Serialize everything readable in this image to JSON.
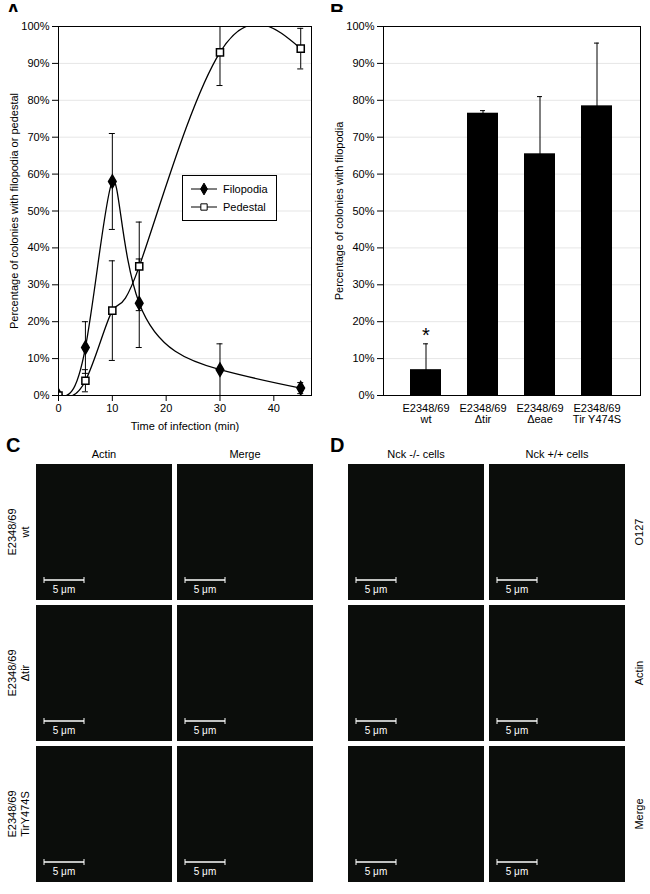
{
  "chart_data": [
    {
      "panel": "A",
      "type": "line",
      "x": [
        0,
        5,
        10,
        15,
        30,
        45
      ],
      "series": [
        {
          "name": "Filopodia",
          "color": "#000000",
          "marker": "diamond",
          "line_style": "smooth",
          "values": [
            0,
            13,
            58,
            25,
            7,
            2
          ],
          "errors": [
            0,
            7,
            13,
            12,
            7,
            1.5
          ]
        },
        {
          "name": "Pedestal",
          "color": "#000000",
          "marker": "square_open",
          "line_style": "smooth",
          "values": [
            0,
            4,
            23,
            35,
            93,
            94
          ],
          "errors": [
            0,
            3,
            13.5,
            12,
            9,
            5.5
          ]
        }
      ],
      "xlabel": "Time of infection (min)",
      "ylabel": "Percentage of colonies with filopodia or pedestal",
      "xlim": [
        0,
        47
      ],
      "xticks": [
        0,
        10,
        20,
        30,
        40
      ],
      "ylim": [
        0,
        100
      ],
      "yticks": [
        {
          "value": 0,
          "label": "0%"
        },
        {
          "value": 10,
          "label": "10%"
        },
        {
          "value": 20,
          "label": "20%"
        },
        {
          "value": 30,
          "label": "30%"
        },
        {
          "value": 40,
          "label": "40%"
        },
        {
          "value": 50,
          "label": "50%"
        },
        {
          "value": 60,
          "label": "60%"
        },
        {
          "value": 70,
          "label": "70%"
        },
        {
          "value": 80,
          "label": "80%"
        },
        {
          "value": 90,
          "label": "90%"
        },
        {
          "value": 100,
          "label": "100%"
        }
      ],
      "grid": true,
      "legend": "right"
    },
    {
      "panel": "B",
      "type": "bar",
      "categories": [
        "E2348/69\nwt",
        "E2348/69\nΔtir",
        "E2348/69\nΔeae",
        "E2348/69\nTir Y474S"
      ],
      "values": [
        7,
        76.5,
        65.5,
        78.5
      ],
      "errors": [
        7,
        0.7,
        15.5,
        17
      ],
      "color": "#000000",
      "ylabel": "Percentage of colonies with filopodia",
      "ylim": [
        0,
        100
      ],
      "yticks": [
        {
          "value": 0,
          "label": "0%"
        },
        {
          "value": 10,
          "label": "10%"
        },
        {
          "value": 20,
          "label": "20%"
        },
        {
          "value": 30,
          "label": "30%"
        },
        {
          "value": 40,
          "label": "40%"
        },
        {
          "value": 50,
          "label": "50%"
        },
        {
          "value": 60,
          "label": "60%"
        },
        {
          "value": 70,
          "label": "70%"
        },
        {
          "value": 80,
          "label": "80%"
        },
        {
          "value": 90,
          "label": "90%"
        },
        {
          "value": 100,
          "label": "100%"
        }
      ],
      "grid": true,
      "annotations": [
        {
          "text": "*",
          "category": "E2348/69\nwt"
        }
      ]
    }
  ],
  "image_panels": [
    {
      "panel": "C",
      "columns": [
        "Actin",
        "Merge"
      ],
      "rows": [
        "E2348/69\nwt",
        "E2348/69\nΔtir",
        "E2348/69\nTirY474S"
      ],
      "scale_bar": "5 μm"
    },
    {
      "panel": "D",
      "columns": [
        "Nck -/- cells",
        "Nck +/+ cells"
      ],
      "rows": [
        "O127",
        "Actin",
        "Merge"
      ],
      "scale_bar": "5 μm"
    }
  ]
}
